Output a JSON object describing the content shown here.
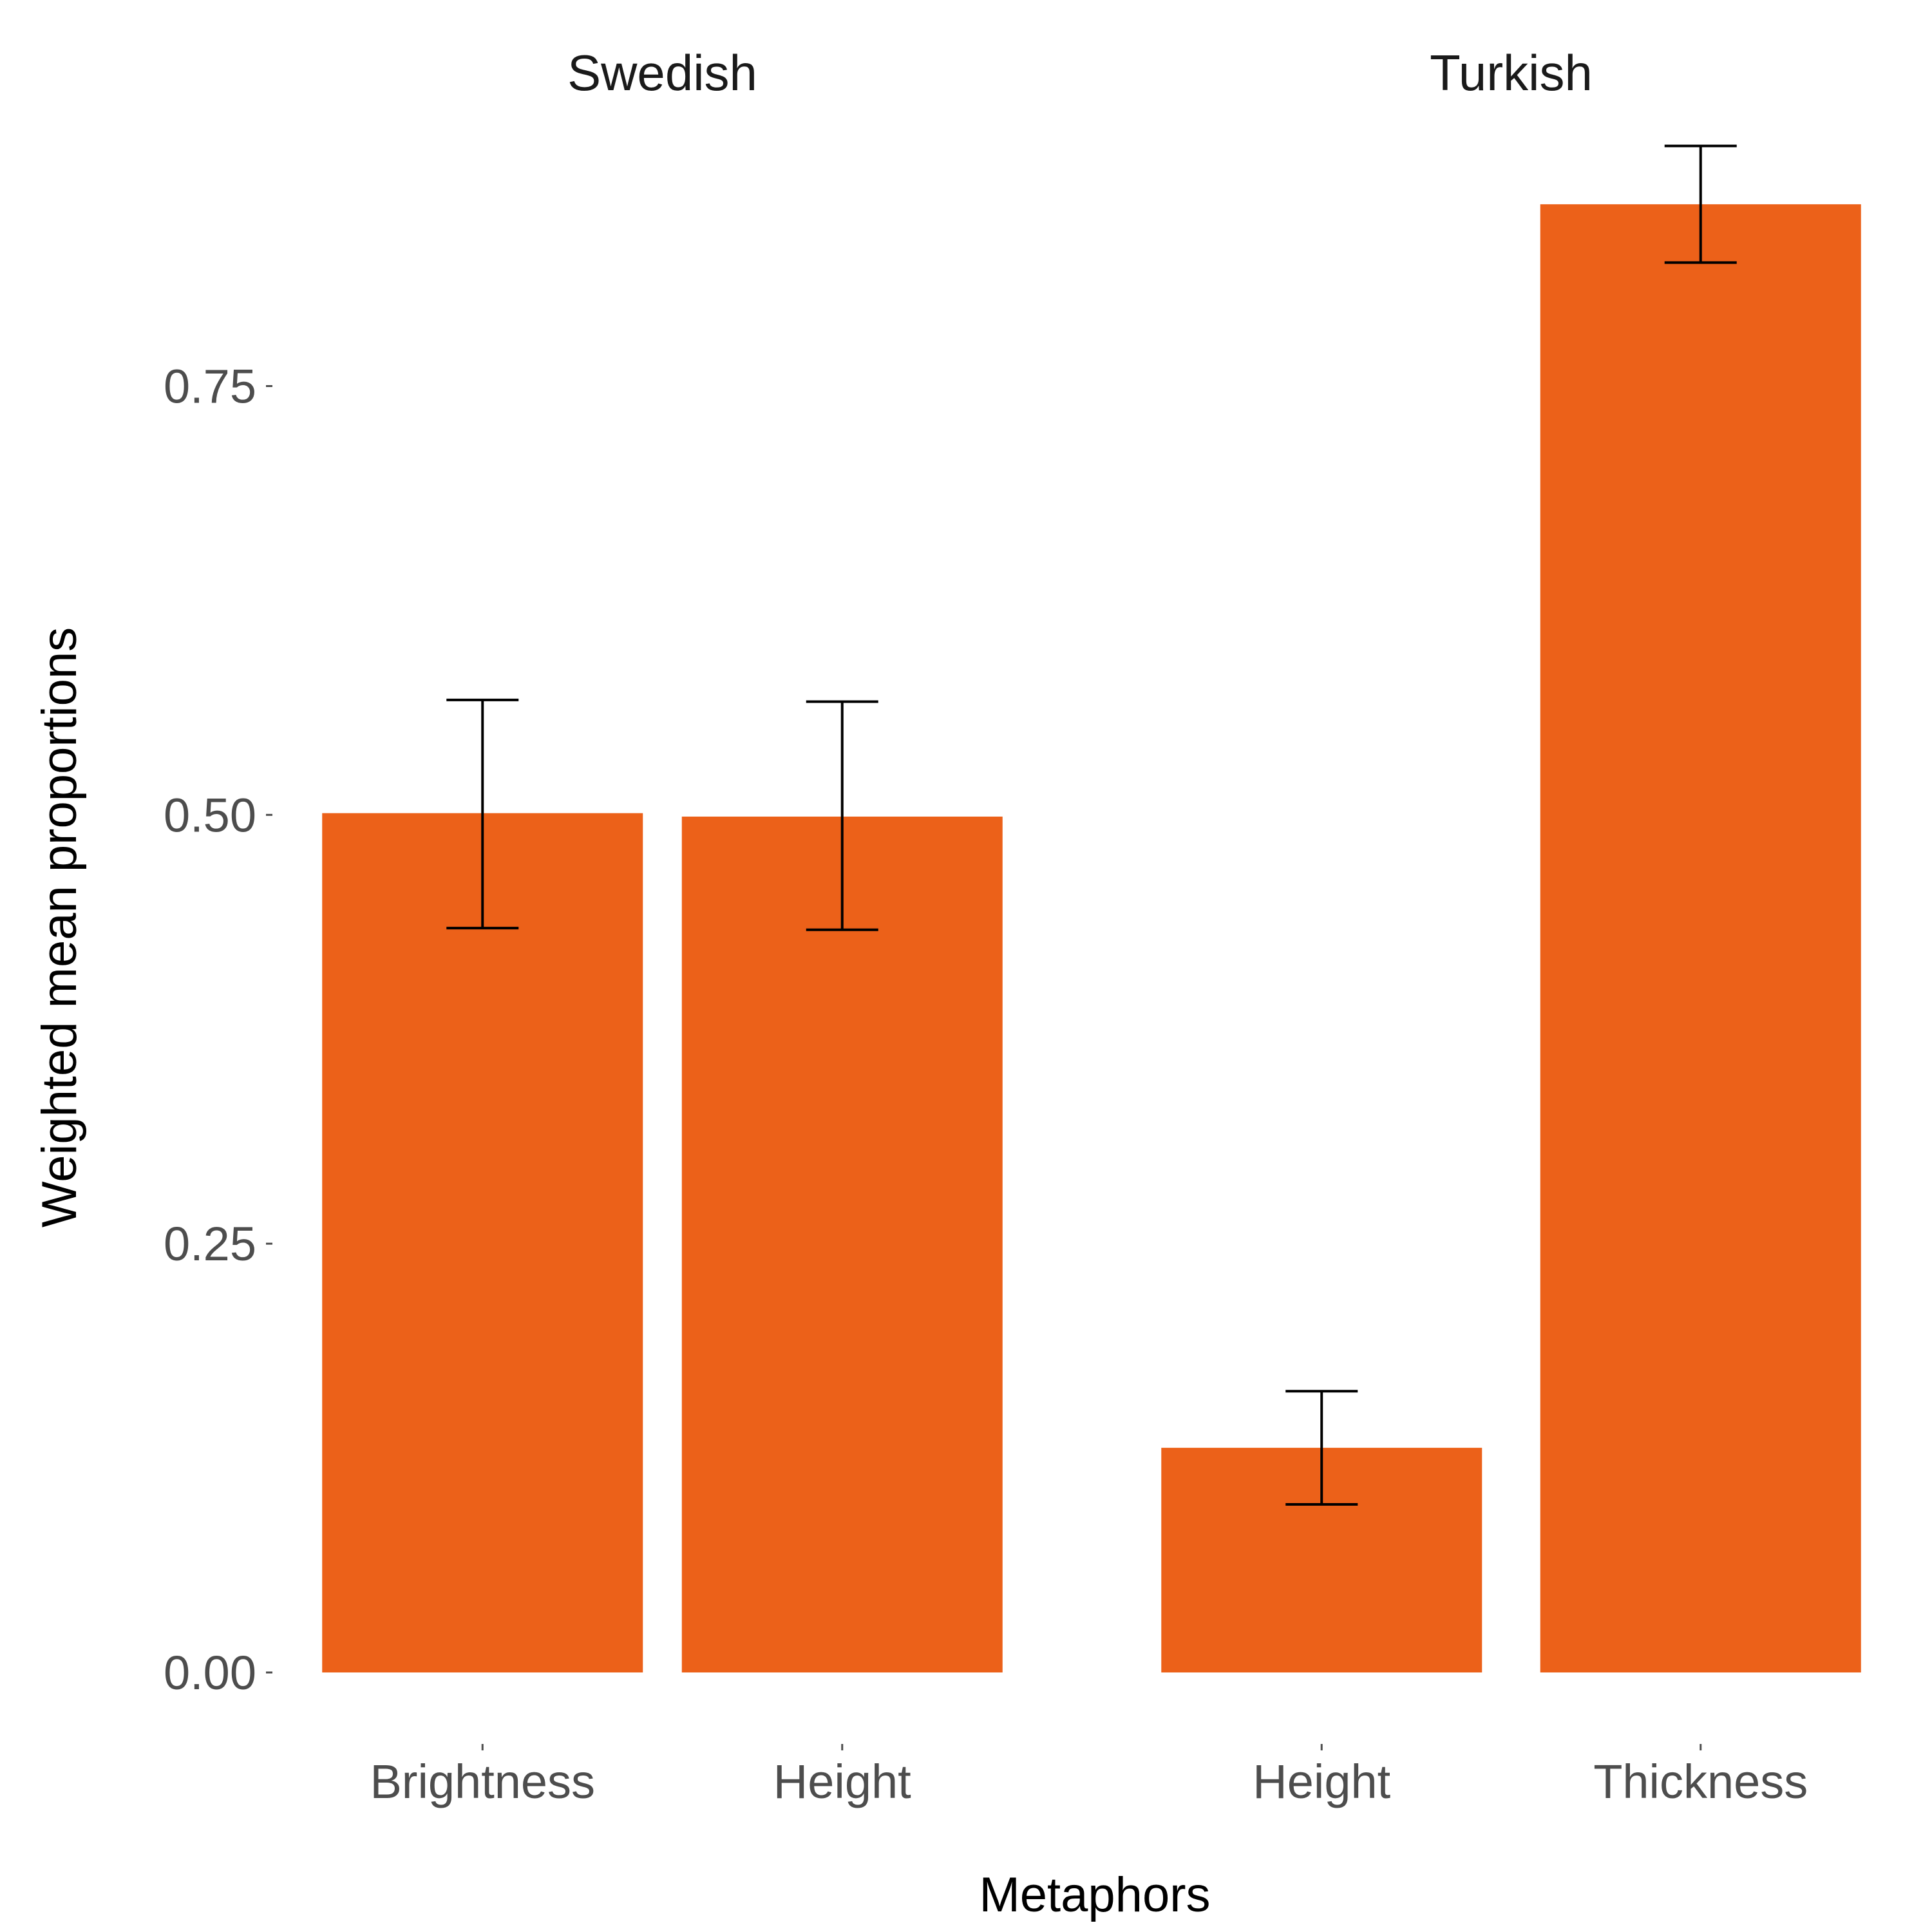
{
  "chart_data": {
    "type": "bar",
    "xlabel": "Metaphors",
    "ylabel": "Weighted mean proportions",
    "ylim": [
      0,
      0.9
    ],
    "yticks": [
      "0.00",
      "0.25",
      "0.50",
      "0.75"
    ],
    "ytick_values": [
      0,
      0.25,
      0.5,
      0.75
    ],
    "grid": false,
    "bar_color": "#EC6119",
    "panels": [
      {
        "name": "Swedish",
        "categories": [
          "Brightness",
          "Height"
        ],
        "values": [
          0.501,
          0.499
        ],
        "error_low": [
          0.434,
          0.433
        ],
        "error_high": [
          0.567,
          0.566
        ]
      },
      {
        "name": "Turkish",
        "categories": [
          "Height",
          "Thickness"
        ],
        "values": [
          0.131,
          0.856
        ],
        "error_low": [
          0.098,
          0.822
        ],
        "error_high": [
          0.164,
          0.89
        ]
      }
    ]
  }
}
